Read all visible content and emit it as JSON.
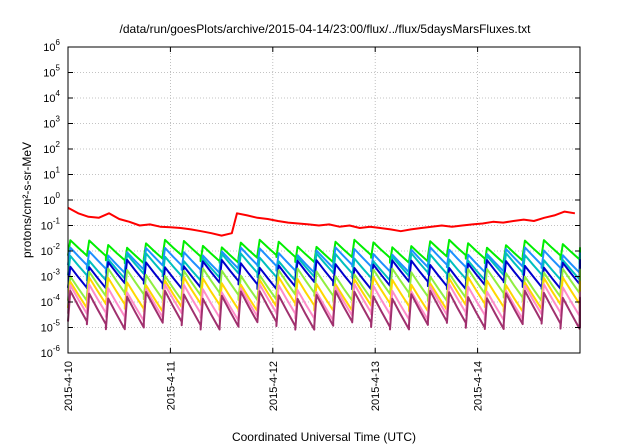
{
  "chart_data": {
    "type": "line",
    "title": "/data/run/goesPlots/archive/2015-04-14/23:00/flux/../flux/5daysMarsFluxes.txt",
    "xlabel": "Coordinated Universal Time (UTC)",
    "ylabel": "protons/cm²-s-sr-MeV",
    "y_scale": "log",
    "ylim": [
      1e-06,
      1000000.0
    ],
    "xlim": [
      "2015-04-10",
      "2015-04-15"
    ],
    "x_ticks": [
      "2015-4-10",
      "2015-4-11",
      "2015-4-12",
      "2015-4-13",
      "2015-4-14"
    ],
    "y_ticks": [
      {
        "base": "10",
        "exp": "-6"
      },
      {
        "base": "10",
        "exp": "-5"
      },
      {
        "base": "10",
        "exp": "-4"
      },
      {
        "base": "10",
        "exp": "-3"
      },
      {
        "base": "10",
        "exp": "-2"
      },
      {
        "base": "10",
        "exp": "-1"
      },
      {
        "base": "10",
        "exp": "0"
      },
      {
        "base": "10",
        "exp": "1"
      },
      {
        "base": "10",
        "exp": "2"
      },
      {
        "base": "10",
        "exp": "3"
      },
      {
        "base": "10",
        "exp": "4"
      },
      {
        "base": "10",
        "exp": "5"
      },
      {
        "base": "10",
        "exp": "6"
      }
    ],
    "grid": true,
    "x": [
      0.0,
      0.1,
      0.2,
      0.3,
      0.4,
      0.5,
      0.6,
      0.7,
      0.8,
      0.9,
      1.0,
      1.1,
      1.2,
      1.3,
      1.4,
      1.5,
      1.6,
      1.65,
      1.75,
      1.85,
      1.95,
      2.05,
      2.15,
      2.25,
      2.35,
      2.45,
      2.55,
      2.65,
      2.75,
      2.85,
      2.95,
      3.05,
      3.15,
      3.25,
      3.35,
      3.45,
      3.55,
      3.65,
      3.75,
      3.85,
      3.95,
      4.05,
      4.15,
      4.25,
      4.35,
      4.45,
      4.55,
      4.65,
      4.75,
      4.85,
      4.95
    ],
    "series": [
      {
        "color": "#ff0000",
        "values": [
          0.5,
          0.3,
          0.22,
          0.2,
          0.3,
          0.18,
          0.14,
          0.1,
          0.11,
          0.09,
          0.085,
          0.08,
          0.07,
          0.06,
          0.05,
          0.04,
          0.05,
          0.3,
          0.25,
          0.2,
          0.18,
          0.15,
          0.13,
          0.12,
          0.11,
          0.1,
          0.11,
          0.09,
          0.1,
          0.08,
          0.09,
          0.08,
          0.07,
          0.06,
          0.07,
          0.08,
          0.09,
          0.1,
          0.09,
          0.1,
          0.11,
          0.12,
          0.14,
          0.13,
          0.15,
          0.17,
          0.15,
          0.2,
          0.25,
          0.35,
          0.3
        ]
      },
      {
        "color": "#00ee00",
        "baseline": 0.012,
        "swing": 2.0
      },
      {
        "color": "#1e90ff",
        "baseline": 0.0055,
        "swing": 2.2
      },
      {
        "color": "#00bfbf",
        "baseline": 0.003,
        "swing": 2.4
      },
      {
        "color": "#0000cd",
        "baseline": 0.0015,
        "swing": 2.6
      },
      {
        "color": "#90ee40",
        "baseline": 0.0006,
        "swing": 3.0
      },
      {
        "color": "#ffd700",
        "baseline": 0.00025,
        "swing": 3.3
      },
      {
        "color": "#ff8cc8",
        "baseline": 0.00012,
        "swing": 3.6
      },
      {
        "color": "#a0306e",
        "baseline": 6e-05,
        "swing": 4.0
      }
    ],
    "sawtooth_period_days": 0.185
  }
}
